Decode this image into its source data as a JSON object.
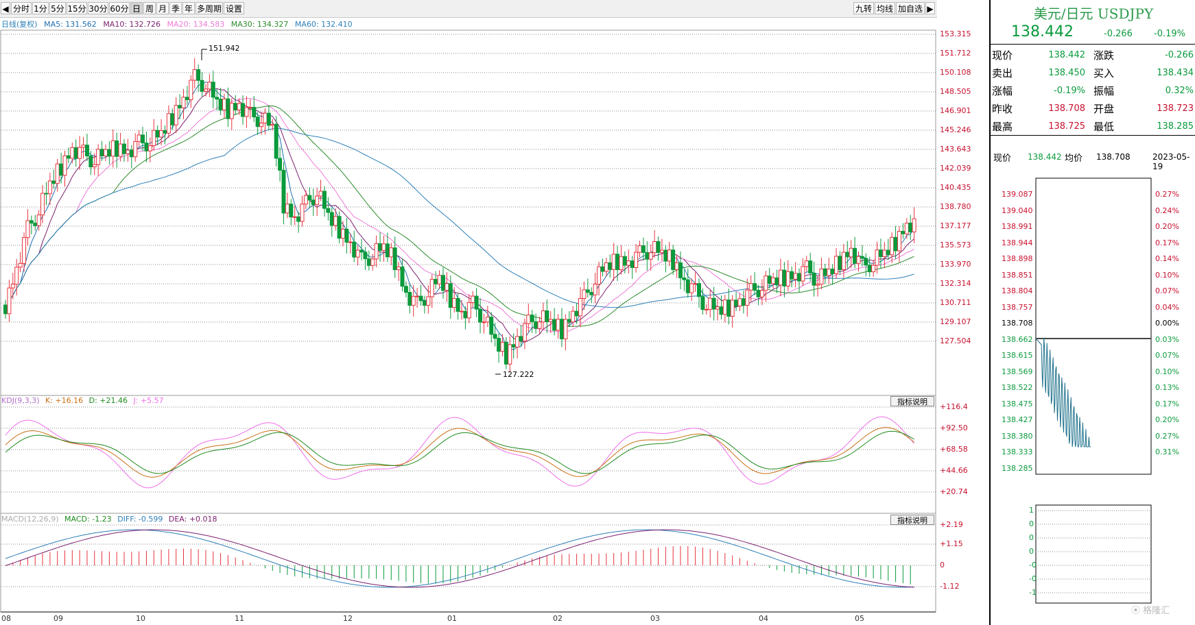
{
  "toolbar": {
    "items": [
      "分时",
      "1分",
      "5分",
      "15分",
      "30分",
      "60分",
      "日",
      "周",
      "月",
      "季",
      "年",
      "多周期",
      "设置"
    ],
    "active": "日",
    "right": [
      "九转",
      "均线",
      "加自选"
    ]
  },
  "ma_legend": {
    "title": "日线(复权)",
    "ma5": "MA5: 131.562",
    "ma10": "MA10: 132.726",
    "ma20": "MA20: 134.583",
    "ma30": "MA30: 134.327",
    "ma60": "MA60: 132.410"
  },
  "colors": {
    "up": "#e8323c",
    "down": "#0a9a3c",
    "ma5": "#1f6fb0",
    "ma10": "#7b1e6e",
    "ma20": "#ee7ad8",
    "ma30": "#2a8a2a",
    "ma60": "#2c7fb8",
    "kdj_k": "#c76f14",
    "kdj_d": "#1d8a1d",
    "kdj_j": "#ee6ee8"
  },
  "price_axis": [
    "153.315",
    "151.712",
    "150.108",
    "148.505",
    "146.901",
    "145.246",
    "143.643",
    "142.039",
    "140.435",
    "138.780",
    "137.177",
    "135.573",
    "133.970",
    "132.314",
    "130.711",
    "129.107",
    "127.504"
  ],
  "annotations": {
    "high": "151.942",
    "low": "127.222"
  },
  "kdj": {
    "legend": {
      "title": "KDJ(9,3,3)",
      "k": "K: +16.16",
      "d": "D: +21.46",
      "j": "J: +5.57"
    },
    "axis": [
      "+116.4",
      "+92.50",
      "+68.58",
      "+44.66",
      "+20.74"
    ],
    "button": "指标说明"
  },
  "macd": {
    "legend": {
      "title": "MACD(12,26,9)",
      "macd": "MACD: -1.23",
      "diff": "DIFF: -0.599",
      "dea": "DEA: +0.018"
    },
    "axis": [
      "+2.19",
      "+1.15",
      "0",
      "-1.12"
    ],
    "button": "指标说明"
  },
  "x_axis": [
    "08",
    "09",
    "10",
    "11",
    "12",
    "01",
    "02",
    "03",
    "04",
    "05"
  ],
  "quote": {
    "title": "美元/日元 USDJPY",
    "price": "138.442",
    "change": "-0.266",
    "pct": "-0.19%",
    "rows": [
      {
        "l1": "现价",
        "v1": "138.442",
        "l2": "涨跌",
        "v2": "-0.266"
      },
      {
        "l1": "卖出",
        "v1": "138.450",
        "l2": "买入",
        "v2": "138.434"
      },
      {
        "l1": "涨幅",
        "v1": "-0.19%",
        "l2": "振幅",
        "v2": "0.32%"
      },
      {
        "l1": "昨收",
        "v1": "138.708",
        "l2": "开盘",
        "v2": "138.723"
      },
      {
        "l1": "最高",
        "v1": "138.725",
        "l2": "最低",
        "v2": "138.285"
      }
    ]
  },
  "mini": {
    "header": {
      "l1": "现价",
      "v1": "138.442",
      "l2": "均价",
      "v2": "138.708",
      "date": "2023-05-19"
    },
    "left_axis": [
      "139.087",
      "139.040",
      "138.991",
      "138.944",
      "138.898",
      "138.851",
      "138.804",
      "138.757",
      "138.708",
      "138.662",
      "138.615",
      "138.569",
      "138.522",
      "138.475",
      "138.427",
      "138.380",
      "138.333",
      "138.285"
    ],
    "right_axis": [
      "0.27%",
      "0.24%",
      "0.20%",
      "0.17%",
      "0.14%",
      "0.10%",
      "0.07%",
      "0.04%",
      "0.00%",
      "0.03%",
      "0.07%",
      "0.10%",
      "0.13%",
      "0.17%",
      "0.20%",
      "0.27%",
      "0.31%"
    ],
    "vol_axis": [
      "1",
      "0",
      "0",
      "0",
      "-0",
      "-0",
      "-1"
    ]
  },
  "chart_data": {
    "type": "candlestick",
    "x": [
      "08",
      "09",
      "10",
      "11",
      "12",
      "01",
      "02",
      "03",
      "04",
      "05"
    ],
    "ylim": [
      126.5,
      153.5
    ],
    "kline": [
      132.0,
      135.0,
      138.0,
      139.5,
      141.5,
      143.0,
      144.5,
      144.0,
      143.5,
      144.0,
      144.5,
      144.3,
      144.8,
      145.0,
      145.5,
      147.0,
      148.5,
      150.0,
      149.5,
      148.0,
      147.5,
      148.0,
      147.0,
      146.8,
      146.0,
      140.0,
      139.0,
      140.0,
      141.0,
      139.0,
      138.0,
      137.0,
      135.5,
      136.0,
      136.5,
      135.5,
      133.0,
      132.0,
      133.0,
      134.0,
      132.5,
      131.5,
      132.0,
      131.0,
      129.0,
      128.0,
      129.5,
      130.5,
      131.0,
      130.5,
      130.0,
      131.5,
      132.5,
      134.0,
      135.0,
      135.5,
      135.5,
      136.0,
      136.5,
      136.0,
      135.5,
      134.0,
      133.0,
      132.0,
      131.5,
      131.8,
      132.5,
      133.0,
      133.5,
      133.8,
      134.2,
      134.5,
      134.8,
      134.0,
      134.5,
      135.5,
      136.5,
      135.0,
      135.5,
      136.0,
      137.0,
      138.5
    ]
  }
}
